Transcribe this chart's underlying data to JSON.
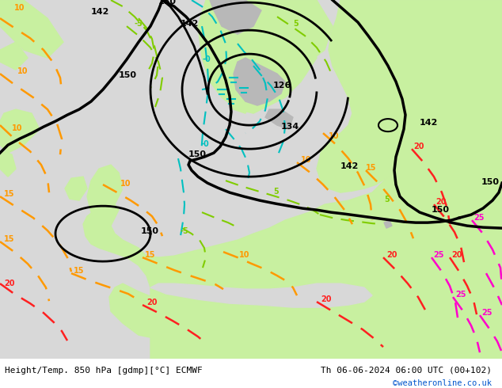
{
  "title_left": "Height/Temp. 850 hPa [gdmp][°C] ECMWF",
  "title_right": "Th 06-06-2024 06:00 UTC (00+102)",
  "credit": "©weatheronline.co.uk",
  "bg_ocean": "#d8d8d8",
  "bg_land_green": "#c8f0a0",
  "bg_land_dark_gray": "#b0b0b0",
  "color_height": "#000000",
  "color_temp_cyan": "#00c0c0",
  "color_temp_green": "#80cc00",
  "color_temp_orange": "#ff9900",
  "color_temp_red": "#ff2020",
  "color_temp_magenta": "#ff00cc",
  "fig_width": 6.34,
  "fig_height": 4.9,
  "dpi": 100
}
